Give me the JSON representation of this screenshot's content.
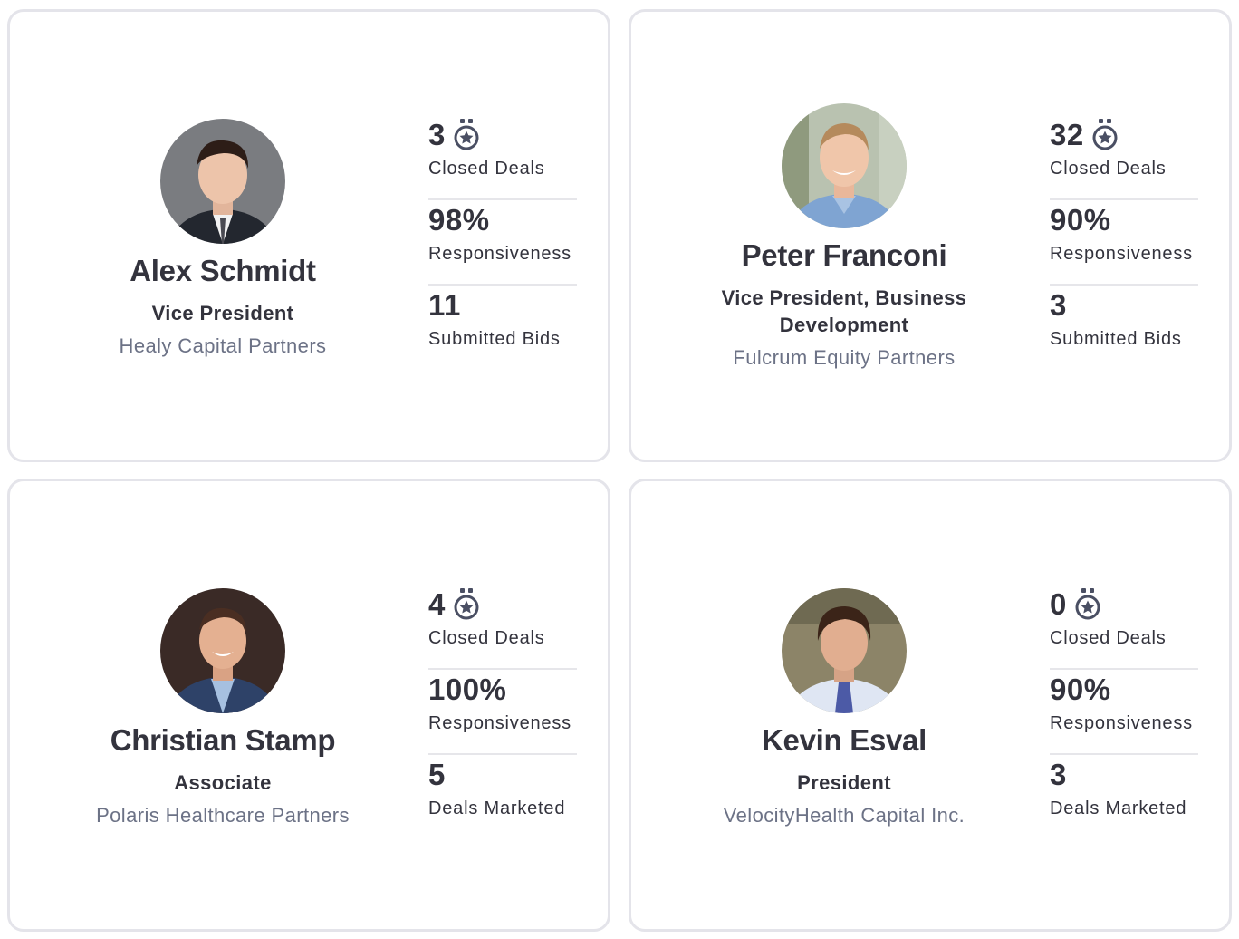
{
  "cards": [
    {
      "name": "Alex Schmidt",
      "title": "Vice President",
      "company": "Healy Capital Partners",
      "avatar_icon": "avatar-photo",
      "stats": [
        {
          "value": "3",
          "label": "Closed Deals",
          "icon": "medal-icon"
        },
        {
          "value": "98%",
          "label": "Responsiveness"
        },
        {
          "value": "11",
          "label": "Submitted Bids"
        }
      ]
    },
    {
      "name": "Peter Franconi",
      "title": "Vice President, Business Development",
      "company": "Fulcrum Equity Partners",
      "avatar_icon": "avatar-photo",
      "stats": [
        {
          "value": "32",
          "label": "Closed Deals",
          "icon": "medal-icon"
        },
        {
          "value": "90%",
          "label": "Responsiveness"
        },
        {
          "value": "3",
          "label": "Submitted Bids"
        }
      ]
    },
    {
      "name": "Christian Stamp",
      "title": "Associate",
      "company": "Polaris Healthcare Partners",
      "avatar_icon": "avatar-photo",
      "stats": [
        {
          "value": "4",
          "label": "Closed Deals",
          "icon": "medal-icon"
        },
        {
          "value": "100%",
          "label": "Responsiveness"
        },
        {
          "value": "5",
          "label": "Deals Marketed"
        }
      ]
    },
    {
      "name": "Kevin Esval",
      "title": "President",
      "company": "VelocityHealth Capital Inc.",
      "avatar_icon": "avatar-photo",
      "stats": [
        {
          "value": "0",
          "label": "Closed Deals",
          "icon": "medal-icon"
        },
        {
          "value": "90%",
          "label": "Responsiveness"
        },
        {
          "value": "3",
          "label": "Deals Marketed"
        }
      ]
    }
  ],
  "colors": {
    "text_dark": "#33333d",
    "text_muted": "#6c7286",
    "border": "#e4e4ea",
    "divider": "#e6e6ea",
    "medal": "#4a4f63"
  }
}
